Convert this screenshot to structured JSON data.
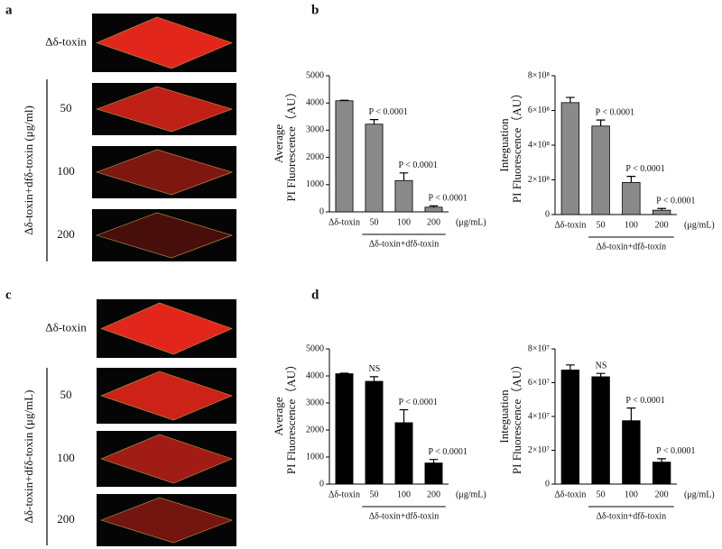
{
  "panels": {
    "a": "a",
    "b": "b",
    "c": "c",
    "d": "d"
  },
  "images_a": {
    "group_label": "Δδ-toxin+dfδ-toxin (μg/ml)",
    "labels": [
      "Δδ-toxin",
      "50",
      "100",
      "200"
    ]
  },
  "images_c": {
    "group_label": "Δδ-toxin+dfδ-toxin (μg/mL)",
    "labels": [
      "Δδ-toxin",
      "50",
      "100",
      "200"
    ]
  },
  "chart_data": [
    {
      "type": "bar",
      "y_label": [
        "Average",
        "PI Fluorescence（AU）"
      ],
      "categories": [
        "Δδ-toxin",
        "50",
        "100",
        "200"
      ],
      "values": [
        4080,
        3220,
        1150,
        170
      ],
      "errors": [
        20,
        170,
        280,
        50
      ],
      "value_annotations": [
        null,
        "P < 0.0001",
        "P < 0.0001",
        "P < 0.0001"
      ],
      "unit_label": "(μg/mL)",
      "group_label": "Δδ-toxin+dfδ-toxin",
      "color": "#8a8a8a",
      "ylim": [
        0,
        5000
      ],
      "yticks": [
        0,
        1000,
        2000,
        3000,
        4000,
        5000
      ]
    },
    {
      "type": "bar",
      "y_label": [
        "Integuation",
        "PI Fluorescence（AU）"
      ],
      "categories": [
        "Δδ-toxin",
        "50",
        "100",
        "200"
      ],
      "values": [
        645000000,
        510000000,
        185000000,
        25000000
      ],
      "errors": [
        30000000,
        35000000,
        35000000,
        10000000
      ],
      "value_annotations": [
        null,
        "P < 0.0001",
        "P < 0.0001",
        "P < 0.0001"
      ],
      "unit_label": "(μg/mL)",
      "group_label": "Δδ-toxin+dfδ-toxin",
      "color": "#8a8a8a",
      "ylim": [
        0,
        800000000
      ],
      "yticks": [
        0,
        {
          "value": 200000000,
          "label": "2×10⁸"
        },
        {
          "value": 400000000,
          "label": "4×10⁸"
        },
        {
          "value": 600000000,
          "label": "6×10⁸"
        },
        {
          "value": 800000000,
          "label": "8×10⁸"
        }
      ]
    },
    {
      "type": "bar",
      "y_label": [
        "Average",
        "PI Fluorescence（AU）"
      ],
      "categories": [
        "Δδ-toxin",
        "50",
        "100",
        "200"
      ],
      "values": [
        4080,
        3800,
        2270,
        780
      ],
      "errors": [
        20,
        170,
        480,
        130
      ],
      "value_annotations": [
        null,
        "NS",
        "P < 0.0001",
        "P < 0.0001"
      ],
      "unit_label": "(μg/mL)",
      "group_label": "Δδ-toxin+dfδ-toxin",
      "color": "#000000",
      "ylim": [
        0,
        5000
      ],
      "yticks": [
        0,
        1000,
        2000,
        3000,
        4000,
        5000
      ]
    },
    {
      "type": "bar",
      "y_label": [
        "Integuation",
        "PI Fluorescence（AU）"
      ],
      "categories": [
        "Δδ-toxin",
        "50",
        "100",
        "200"
      ],
      "values": [
        67500000,
        63500000,
        37500000,
        13000000
      ],
      "errors": [
        3000000,
        2000000,
        7500000,
        2000000
      ],
      "value_annotations": [
        null,
        "NS",
        "P < 0.0001",
        "P < 0.0001"
      ],
      "unit_label": "(μg/mL)",
      "group_label": "Δδ-toxin+dfδ-toxin",
      "color": "#000000",
      "ylim": [
        0,
        80000000
      ],
      "yticks": [
        0,
        {
          "value": 20000000,
          "label": "2×10⁷"
        },
        {
          "value": 40000000,
          "label": "4×10⁷"
        },
        {
          "value": 60000000,
          "label": "6×10⁷"
        },
        {
          "value": 80000000,
          "label": "8×10⁷"
        }
      ]
    }
  ]
}
